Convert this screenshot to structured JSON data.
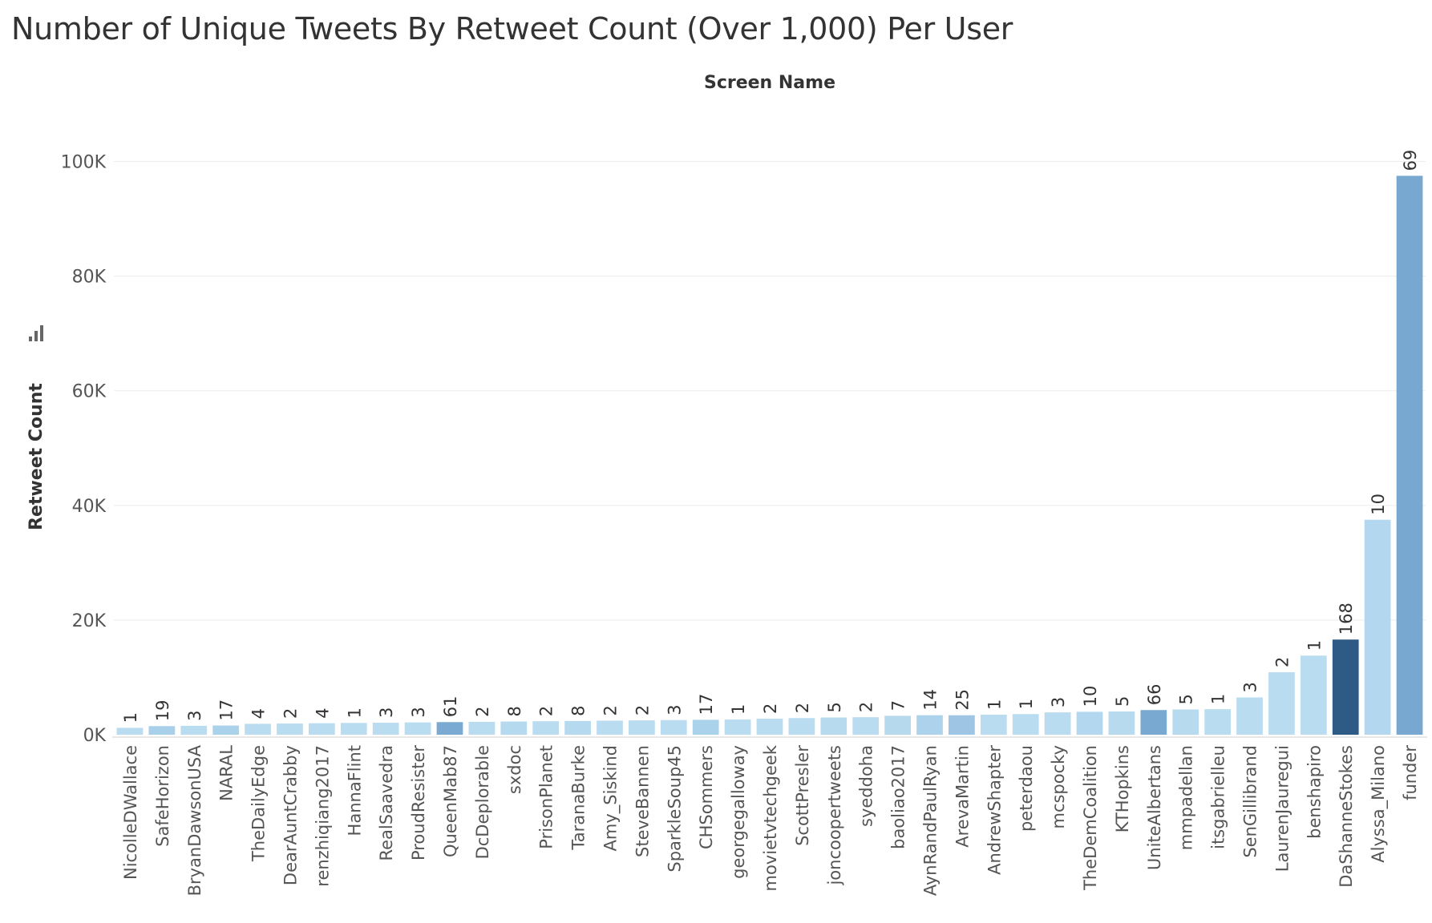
{
  "chart_data": {
    "type": "bar",
    "title": "Number of Unique Tweets By Retweet Count (Over 1,000) Per User",
    "xlabel": "Screen Name",
    "ylabel": "Retweet Count",
    "ylim": [
      0,
      110000
    ],
    "yticks": [
      0,
      20000,
      40000,
      60000,
      80000,
      100000
    ],
    "ytick_labels": [
      "0K",
      "20K",
      "40K",
      "60K",
      "80K",
      "100K"
    ],
    "grid": true,
    "color_scale": {
      "low": "#b9dcf0",
      "mid": "#7aaad1",
      "high": "#2e5b86"
    },
    "categories": [
      "NicolleDWallace",
      "SafeHorizon",
      "BryanDawsonUSA",
      "NARAL",
      "TheDailyEdge",
      "DearAuntCrabby",
      "renzhiqiang2017",
      "HannaFlint",
      "RealSaavedra",
      "ProudResister",
      "QueenMab87",
      "DcDeplorable",
      "sxdoc",
      "PrisonPlanet",
      "TaranaBurke",
      "Amy_Siskind",
      "SteveBannen",
      "SparkleSoup45",
      "CHSommers",
      "georgegalloway",
      "movietvtechgeek",
      "ScottPresler",
      "joncoopertweets",
      "syeddoha",
      "baoliao2017",
      "AynRandPaulRyan",
      "ArevaMartin",
      "AndrewShapter",
      "peterdaou",
      "mcspocky",
      "TheDemCoalition",
      "KTHopkins",
      "UniteAlbertans",
      "mmpadellan",
      "itsgabrielleu",
      "SenGillibrand",
      "LaurenJauregui",
      "benshapiro",
      "DaShanneStokes",
      "Alyssa_Milano",
      "funder"
    ],
    "values": [
      1200,
      1500,
      1550,
      1600,
      1900,
      1950,
      2000,
      2050,
      2100,
      2150,
      2200,
      2250,
      2300,
      2350,
      2400,
      2450,
      2500,
      2550,
      2600,
      2650,
      2800,
      2900,
      3000,
      3050,
      3300,
      3400,
      3400,
      3500,
      3600,
      3900,
      4000,
      4050,
      4300,
      4400,
      4450,
      6500,
      10900,
      13800,
      16600,
      37500,
      97500
    ],
    "bar_labels": [
      "1",
      "19",
      "3",
      "17",
      "4",
      "2",
      "4",
      "1",
      "3",
      "3",
      "61",
      "2",
      "8",
      "2",
      "8",
      "2",
      "2",
      "3",
      "17",
      "1",
      "2",
      "2",
      "5",
      "2",
      "7",
      "14",
      "25",
      "1",
      "1",
      "3",
      "10",
      "5",
      "66",
      "5",
      "1",
      "3",
      "2",
      "1",
      "168",
      "10",
      "69"
    ],
    "bar_colors": [
      "#b9dcf0",
      "#a8d0ea",
      "#b9dcf0",
      "#abd2eb",
      "#b9dcf0",
      "#b9dcf0",
      "#b9dcf0",
      "#b9dcf0",
      "#b9dcf0",
      "#b9dcf0",
      "#7aaad1",
      "#b9dcf0",
      "#b5d9ee",
      "#b9dcf0",
      "#b5d9ee",
      "#b9dcf0",
      "#b9dcf0",
      "#b9dcf0",
      "#abd2eb",
      "#b9dcf0",
      "#b9dcf0",
      "#b9dcf0",
      "#b7daef",
      "#b9dcf0",
      "#b6d9ee",
      "#add3ec",
      "#9ec5e4",
      "#b9dcf0",
      "#b9dcf0",
      "#b9dcf0",
      "#b2d7ee",
      "#b7daef",
      "#79a9d0",
      "#b7daef",
      "#b9dcf0",
      "#b9dcf0",
      "#b9dcf0",
      "#b9dcf0",
      "#2e5b86",
      "#b2d7ee",
      "#78a8d0"
    ]
  }
}
